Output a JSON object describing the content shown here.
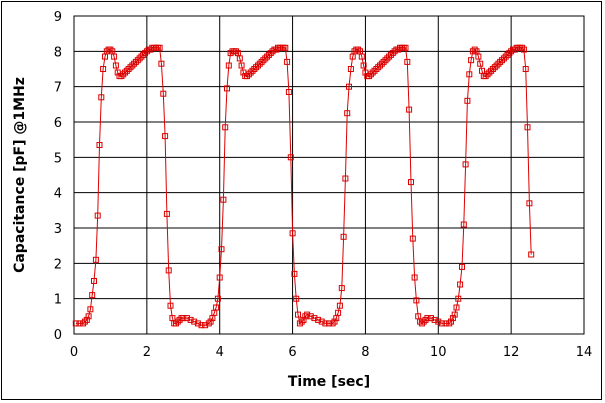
{
  "chart_data": {
    "type": "line",
    "title": "",
    "xlabel": "Time [sec]",
    "ylabel": "Capacitance [pF] @1MHz",
    "xlim": [
      0,
      14
    ],
    "ylim": [
      0,
      9
    ],
    "xticks": [
      "0",
      "2",
      "4",
      "6",
      "8",
      "10",
      "12",
      "14"
    ],
    "yticks": [
      "0",
      "1",
      "2",
      "3",
      "4",
      "5",
      "6",
      "7",
      "8",
      "9"
    ],
    "grid": true,
    "legend": "none",
    "colors": {
      "series": "#dd0000",
      "grid": "#000000"
    },
    "series": [
      {
        "name": "Capacitance",
        "marker": "square",
        "points": [
          [
            0.05,
            0.3
          ],
          [
            0.15,
            0.3
          ],
          [
            0.25,
            0.3
          ],
          [
            0.3,
            0.35
          ],
          [
            0.35,
            0.4
          ],
          [
            0.4,
            0.5
          ],
          [
            0.45,
            0.7
          ],
          [
            0.5,
            1.1
          ],
          [
            0.55,
            1.5
          ],
          [
            0.6,
            2.1
          ],
          [
            0.65,
            3.35
          ],
          [
            0.7,
            5.35
          ],
          [
            0.75,
            6.7
          ],
          [
            0.8,
            7.5
          ],
          [
            0.85,
            7.85
          ],
          [
            0.9,
            8.0
          ],
          [
            0.95,
            8.05
          ],
          [
            1.0,
            8.05
          ],
          [
            1.05,
            8.0
          ],
          [
            1.1,
            7.85
          ],
          [
            1.15,
            7.6
          ],
          [
            1.2,
            7.4
          ],
          [
            1.25,
            7.3
          ],
          [
            1.3,
            7.3
          ],
          [
            1.35,
            7.35
          ],
          [
            1.4,
            7.4
          ],
          [
            1.45,
            7.45
          ],
          [
            1.5,
            7.5
          ],
          [
            1.55,
            7.55
          ],
          [
            1.6,
            7.6
          ],
          [
            1.65,
            7.65
          ],
          [
            1.7,
            7.7
          ],
          [
            1.75,
            7.75
          ],
          [
            1.8,
            7.8
          ],
          [
            1.85,
            7.85
          ],
          [
            1.9,
            7.9
          ],
          [
            1.95,
            7.95
          ],
          [
            2.0,
            8.0
          ],
          [
            2.05,
            8.05
          ],
          [
            2.1,
            8.05
          ],
          [
            2.15,
            8.1
          ],
          [
            2.2,
            8.1
          ],
          [
            2.25,
            8.1
          ],
          [
            2.3,
            8.1
          ],
          [
            2.35,
            8.1
          ],
          [
            2.4,
            7.65
          ],
          [
            2.45,
            6.8
          ],
          [
            2.5,
            5.6
          ],
          [
            2.55,
            3.4
          ],
          [
            2.6,
            1.8
          ],
          [
            2.65,
            0.8
          ],
          [
            2.7,
            0.45
          ],
          [
            2.75,
            0.3
          ],
          [
            2.8,
            0.3
          ],
          [
            2.85,
            0.35
          ],
          [
            2.9,
            0.4
          ],
          [
            2.95,
            0.45
          ],
          [
            3.0,
            0.45
          ],
          [
            3.1,
            0.45
          ],
          [
            3.2,
            0.4
          ],
          [
            3.3,
            0.35
          ],
          [
            3.4,
            0.3
          ],
          [
            3.5,
            0.25
          ],
          [
            3.6,
            0.25
          ],
          [
            3.7,
            0.3
          ],
          [
            3.75,
            0.35
          ],
          [
            3.8,
            0.45
          ],
          [
            3.85,
            0.6
          ],
          [
            3.9,
            0.75
          ],
          [
            3.95,
            1.0
          ],
          [
            4.0,
            1.6
          ],
          [
            4.05,
            2.4
          ],
          [
            4.1,
            3.8
          ],
          [
            4.15,
            5.85
          ],
          [
            4.2,
            6.95
          ],
          [
            4.25,
            7.6
          ],
          [
            4.3,
            7.95
          ],
          [
            4.35,
            8.0
          ],
          [
            4.4,
            8.0
          ],
          [
            4.45,
            8.0
          ],
          [
            4.5,
            7.95
          ],
          [
            4.55,
            7.8
          ],
          [
            4.6,
            7.6
          ],
          [
            4.65,
            7.4
          ],
          [
            4.7,
            7.3
          ],
          [
            4.75,
            7.3
          ],
          [
            4.8,
            7.35
          ],
          [
            4.85,
            7.4
          ],
          [
            4.9,
            7.45
          ],
          [
            4.95,
            7.5
          ],
          [
            5.0,
            7.55
          ],
          [
            5.05,
            7.6
          ],
          [
            5.1,
            7.65
          ],
          [
            5.15,
            7.7
          ],
          [
            5.2,
            7.75
          ],
          [
            5.25,
            7.8
          ],
          [
            5.3,
            7.85
          ],
          [
            5.35,
            7.9
          ],
          [
            5.4,
            7.95
          ],
          [
            5.45,
            8.0
          ],
          [
            5.5,
            8.05
          ],
          [
            5.55,
            8.05
          ],
          [
            5.6,
            8.1
          ],
          [
            5.65,
            8.1
          ],
          [
            5.7,
            8.1
          ],
          [
            5.75,
            8.1
          ],
          [
            5.8,
            8.1
          ],
          [
            5.85,
            7.7
          ],
          [
            5.9,
            6.85
          ],
          [
            5.95,
            5.0
          ],
          [
            6.0,
            2.85
          ],
          [
            6.05,
            1.7
          ],
          [
            6.1,
            1.0
          ],
          [
            6.15,
            0.55
          ],
          [
            6.2,
            0.3
          ],
          [
            6.25,
            0.35
          ],
          [
            6.3,
            0.4
          ],
          [
            6.35,
            0.5
          ],
          [
            6.4,
            0.55
          ],
          [
            6.5,
            0.5
          ],
          [
            6.6,
            0.45
          ],
          [
            6.7,
            0.4
          ],
          [
            6.8,
            0.35
          ],
          [
            6.9,
            0.3
          ],
          [
            7.0,
            0.3
          ],
          [
            7.1,
            0.3
          ],
          [
            7.15,
            0.35
          ],
          [
            7.2,
            0.45
          ],
          [
            7.25,
            0.6
          ],
          [
            7.3,
            0.8
          ],
          [
            7.35,
            1.3
          ],
          [
            7.4,
            2.75
          ],
          [
            7.45,
            4.4
          ],
          [
            7.5,
            6.25
          ],
          [
            7.55,
            7.0
          ],
          [
            7.6,
            7.5
          ],
          [
            7.65,
            7.85
          ],
          [
            7.7,
            8.0
          ],
          [
            7.75,
            8.05
          ],
          [
            7.8,
            8.05
          ],
          [
            7.85,
            8.0
          ],
          [
            7.9,
            7.85
          ],
          [
            7.95,
            7.6
          ],
          [
            8.0,
            7.4
          ],
          [
            8.05,
            7.3
          ],
          [
            8.1,
            7.3
          ],
          [
            8.15,
            7.35
          ],
          [
            8.2,
            7.4
          ],
          [
            8.25,
            7.45
          ],
          [
            8.3,
            7.5
          ],
          [
            8.35,
            7.55
          ],
          [
            8.4,
            7.6
          ],
          [
            8.45,
            7.65
          ],
          [
            8.5,
            7.7
          ],
          [
            8.55,
            7.75
          ],
          [
            8.6,
            7.8
          ],
          [
            8.65,
            7.85
          ],
          [
            8.7,
            7.9
          ],
          [
            8.75,
            7.95
          ],
          [
            8.8,
            8.0
          ],
          [
            8.85,
            8.05
          ],
          [
            8.9,
            8.05
          ],
          [
            8.95,
            8.1
          ],
          [
            9.0,
            8.1
          ],
          [
            9.05,
            8.1
          ],
          [
            9.1,
            8.1
          ],
          [
            9.15,
            7.7
          ],
          [
            9.2,
            6.35
          ],
          [
            9.25,
            4.3
          ],
          [
            9.3,
            2.7
          ],
          [
            9.35,
            1.6
          ],
          [
            9.4,
            0.95
          ],
          [
            9.45,
            0.5
          ],
          [
            9.5,
            0.35
          ],
          [
            9.55,
            0.3
          ],
          [
            9.6,
            0.35
          ],
          [
            9.65,
            0.4
          ],
          [
            9.7,
            0.45
          ],
          [
            9.8,
            0.45
          ],
          [
            9.9,
            0.4
          ],
          [
            10.0,
            0.35
          ],
          [
            10.1,
            0.3
          ],
          [
            10.2,
            0.3
          ],
          [
            10.3,
            0.3
          ],
          [
            10.35,
            0.35
          ],
          [
            10.4,
            0.45
          ],
          [
            10.45,
            0.55
          ],
          [
            10.5,
            0.75
          ],
          [
            10.55,
            1.0
          ],
          [
            10.6,
            1.4
          ],
          [
            10.65,
            1.9
          ],
          [
            10.7,
            3.1
          ],
          [
            10.75,
            4.8
          ],
          [
            10.8,
            6.6
          ],
          [
            10.85,
            7.35
          ],
          [
            10.9,
            7.75
          ],
          [
            10.95,
            8.0
          ],
          [
            11.0,
            8.05
          ],
          [
            11.05,
            8.0
          ],
          [
            11.1,
            7.85
          ],
          [
            11.15,
            7.65
          ],
          [
            11.2,
            7.45
          ],
          [
            11.25,
            7.3
          ],
          [
            11.3,
            7.3
          ],
          [
            11.35,
            7.35
          ],
          [
            11.4,
            7.4
          ],
          [
            11.45,
            7.45
          ],
          [
            11.5,
            7.5
          ],
          [
            11.55,
            7.55
          ],
          [
            11.6,
            7.6
          ],
          [
            11.65,
            7.65
          ],
          [
            11.7,
            7.7
          ],
          [
            11.75,
            7.75
          ],
          [
            11.8,
            7.8
          ],
          [
            11.85,
            7.85
          ],
          [
            11.9,
            7.9
          ],
          [
            11.95,
            7.95
          ],
          [
            12.0,
            8.0
          ],
          [
            12.05,
            8.05
          ],
          [
            12.1,
            8.05
          ],
          [
            12.15,
            8.1
          ],
          [
            12.2,
            8.1
          ],
          [
            12.25,
            8.1
          ],
          [
            12.3,
            8.1
          ],
          [
            12.35,
            8.05
          ],
          [
            12.4,
            7.5
          ],
          [
            12.45,
            5.85
          ],
          [
            12.5,
            3.7
          ],
          [
            12.55,
            2.25
          ]
        ]
      }
    ]
  }
}
